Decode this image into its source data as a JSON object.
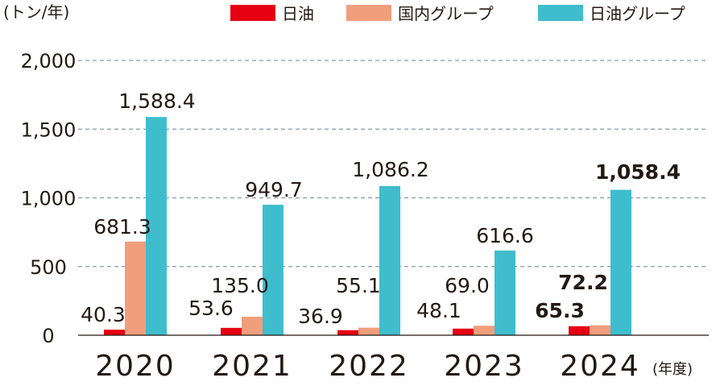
{
  "chart_data": {
    "type": "bar",
    "ylabel": "(トン/年)",
    "xlabel_unit": "(年度)",
    "categories": [
      "2020",
      "2021",
      "2022",
      "2023",
      "2024"
    ],
    "ylim": [
      0,
      2000
    ],
    "yticks": [
      "0",
      "500",
      "1,000",
      "1,500",
      "2,000"
    ],
    "ytick_values": [
      0,
      500,
      1000,
      1500,
      2000
    ],
    "grid": true,
    "legend_position": "top-right",
    "series": [
      {
        "name": "日油",
        "color": "#e60012",
        "values": [
          40.3,
          53.6,
          36.9,
          48.1,
          65.3
        ],
        "labels": [
          "40.3",
          "53.6",
          "36.9",
          "48.1",
          "65.3"
        ]
      },
      {
        "name": "国内グループ",
        "color": "#f19e7c",
        "values": [
          681.3,
          135.0,
          55.1,
          69.0,
          72.2
        ],
        "labels": [
          "681.3",
          "135.0",
          "55.1",
          "69.0",
          "72.2"
        ]
      },
      {
        "name": "日油グループ",
        "color": "#3fbdcd",
        "values": [
          1588.4,
          949.7,
          1086.2,
          616.6,
          1058.4
        ],
        "labels": [
          "1,588.4",
          "949.7",
          "1,086.2",
          "616.6",
          "1,058.4"
        ]
      }
    ],
    "bold_labels_category": "2024"
  }
}
